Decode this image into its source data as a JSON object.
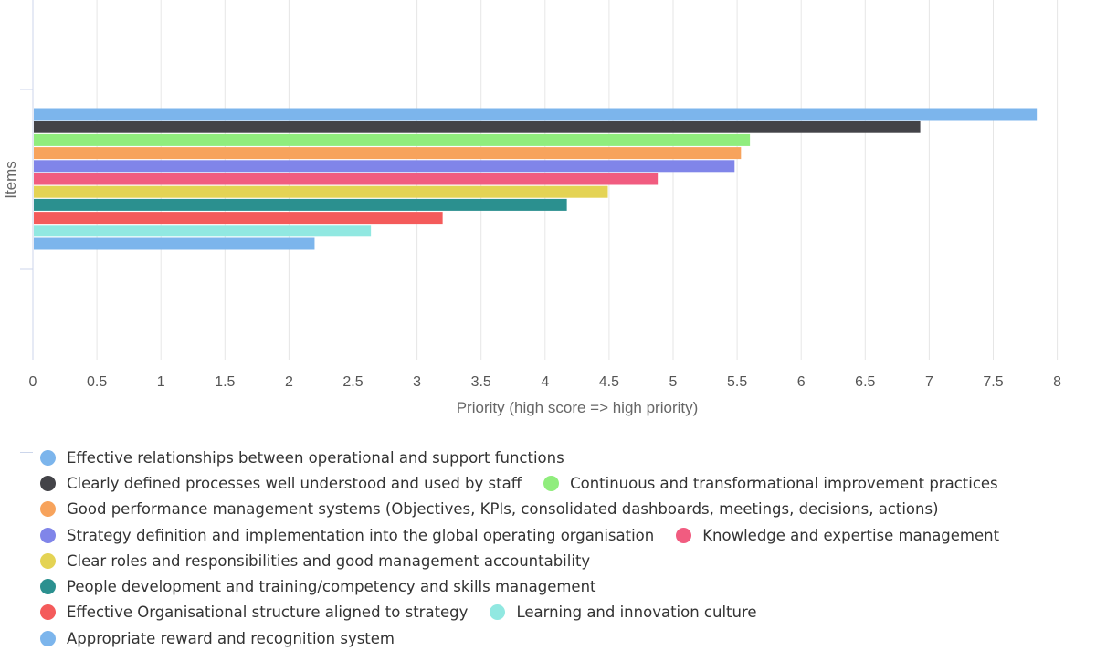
{
  "chart_data": {
    "type": "bar",
    "orientation": "horizontal",
    "title": "",
    "xlabel": "Priority (high score => high priority)",
    "ylabel": "Items",
    "xlim": [
      0,
      8
    ],
    "xticks": [
      "0",
      "0.5",
      "1",
      "1.5",
      "2",
      "2.5",
      "3",
      "3.5",
      "4",
      "4.5",
      "5",
      "5.5",
      "6",
      "6.5",
      "7",
      "7.5",
      "8"
    ],
    "grid": true,
    "legend_position": "bottom",
    "series": [
      {
        "name": "Effective relationships between operational and support functions",
        "value": 7.84,
        "color": "#7cb5ec"
      },
      {
        "name": "Clearly defined processes well understood and used by staff",
        "value": 6.93,
        "color": "#434348"
      },
      {
        "name": "Continuous and transformational improvement practices",
        "value": 5.6,
        "color": "#90ed7d"
      },
      {
        "name": "Good performance management systems (Objectives, KPIs, consolidated dashboards, meetings, decisions, actions)",
        "value": 5.53,
        "color": "#f7a35c"
      },
      {
        "name": "Strategy definition and implementation into the global operating organisation",
        "value": 5.48,
        "color": "#8085e9"
      },
      {
        "name": "Knowledge and expertise management",
        "value": 4.88,
        "color": "#f15c80"
      },
      {
        "name": "Clear roles and responsibilities and good management accountability",
        "value": 4.49,
        "color": "#e4d354"
      },
      {
        "name": "People development and training/competency and skills management",
        "value": 4.17,
        "color": "#2b908f"
      },
      {
        "name": "Effective Organisational structure aligned to strategy",
        "value": 3.2,
        "color": "#f45b5b"
      },
      {
        "name": "Learning and innovation culture",
        "value": 2.64,
        "color": "#91e8e1"
      },
      {
        "name": "Appropriate reward and recognition system",
        "value": 2.2,
        "color": "#7cb5ec"
      }
    ],
    "legend_rows": [
      [
        0
      ],
      [
        1,
        2
      ],
      [
        3
      ],
      [
        4,
        5
      ],
      [
        6
      ],
      [
        7
      ],
      [
        8,
        9
      ],
      [
        10
      ]
    ]
  }
}
